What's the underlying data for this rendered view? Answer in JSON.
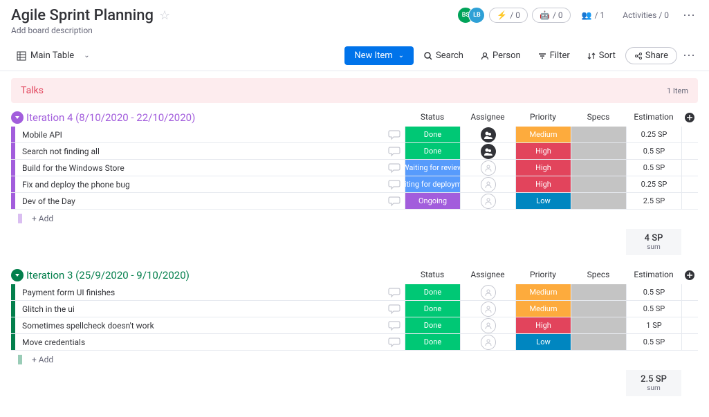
{
  "header": {
    "title": "Agile Sprint Planning",
    "description": "Add board description",
    "avatars": [
      {
        "text": "BS",
        "bg": "#00a359"
      },
      {
        "text": "LB",
        "bg": "#2ea0d6"
      }
    ],
    "pills": [
      {
        "icon": "plug",
        "text": "/ 0"
      },
      {
        "icon": "robot",
        "text": "/ 0"
      }
    ],
    "members_text": "/ 1",
    "activities_text": "Activities / 0"
  },
  "toolbar": {
    "main_table": "Main Table",
    "new_item": "New Item",
    "search": "Search",
    "person": "Person",
    "filter": "Filter",
    "sort": "Sort",
    "share": "Share"
  },
  "talks": {
    "label": "Talks",
    "count": "1 Item"
  },
  "columns": {
    "status": "Status",
    "assignee": "Assignee",
    "priority": "Priority",
    "specs": "Specs",
    "estimation": "Estimation"
  },
  "status_colors": {
    "done": "#00c875",
    "waiting_review": "#579bfc",
    "waiting_deploy": "#579bfc",
    "ongoing": "#a25ddc"
  },
  "priority_colors": {
    "medium": "#fdab3d",
    "high": "#e2445c",
    "low": "#0086c0"
  },
  "groups": [
    {
      "title": "Iteration 4 (8/10/2020 - 22/10/2020)",
      "color": "#a25ddc",
      "sum": "4 SP",
      "rows": [
        {
          "name": "Mobile API",
          "status": "Done",
          "status_bg": "#00c875",
          "assignee": "filled",
          "priority": "Medium",
          "priority_bg": "#fdab3d",
          "estimation": "0.25 SP"
        },
        {
          "name": "Search not finding all",
          "status": "Done",
          "status_bg": "#00c875",
          "assignee": "filled",
          "priority": "High",
          "priority_bg": "#e2445c",
          "estimation": "0.5 SP"
        },
        {
          "name": "Build for the Windows Store",
          "status": "Waiting for review",
          "status_bg": "#579bfc",
          "assignee": "empty",
          "priority": "High",
          "priority_bg": "#e2445c",
          "estimation": "0.5 SP"
        },
        {
          "name": "Fix and deploy the phone bug",
          "status": "Waiting for deployme...",
          "status_bg": "#579bfc",
          "assignee": "empty",
          "priority": "High",
          "priority_bg": "#e2445c",
          "estimation": "0.25 SP"
        },
        {
          "name": "Dev of the Day",
          "status": "Ongoing",
          "status_bg": "#a25ddc",
          "assignee": "empty",
          "priority": "Low",
          "priority_bg": "#0086c0",
          "estimation": "2.5 SP"
        }
      ]
    },
    {
      "title": "Iteration 3 (25/9/2020 - 9/10/2020)",
      "color": "#037f4c",
      "sum": "2.5 SP",
      "rows": [
        {
          "name": "Payment form UI finishes",
          "status": "Done",
          "status_bg": "#00c875",
          "assignee": "empty",
          "priority": "Medium",
          "priority_bg": "#fdab3d",
          "estimation": "0.5 SP"
        },
        {
          "name": "Glitch in the ui",
          "status": "Done",
          "status_bg": "#00c875",
          "assignee": "empty",
          "priority": "Medium",
          "priority_bg": "#fdab3d",
          "estimation": "0.5 SP"
        },
        {
          "name": "Sometimes spellcheck doesn't work",
          "status": "Done",
          "status_bg": "#00c875",
          "assignee": "empty",
          "priority": "High",
          "priority_bg": "#e2445c",
          "estimation": "1 SP"
        },
        {
          "name": "Move credentials",
          "status": "Done",
          "status_bg": "#00c875",
          "assignee": "empty",
          "priority": "Low",
          "priority_bg": "#0086c0",
          "estimation": "0.5 SP"
        }
      ]
    }
  ],
  "add_row_text": "+ Add",
  "sum_label": "sum"
}
